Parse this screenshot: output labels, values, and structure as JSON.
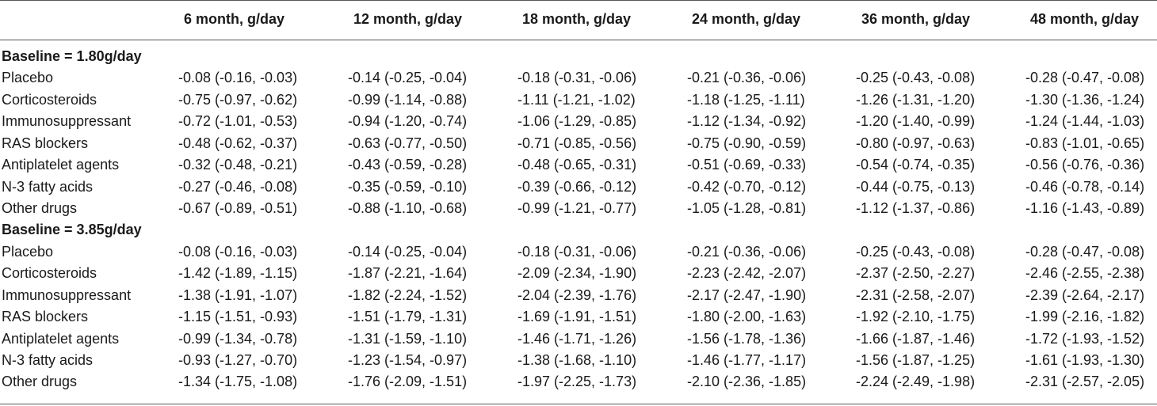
{
  "table": {
    "columns": [
      "6 month, g/day",
      "12 month, g/day",
      "18 month, g/day",
      "24 month, g/day",
      "36 month, g/day",
      "48 month, g/day"
    ],
    "sections": [
      {
        "title": "Baseline = 1.80g/day",
        "rows": [
          {
            "label": "Placebo",
            "cells": [
              "-0.08 (-0.16, -0.03)",
              "-0.14 (-0.25, -0.04)",
              "-0.18 (-0.31, -0.06)",
              "-0.21 (-0.36, -0.06)",
              "-0.25 (-0.43, -0.08)",
              "-0.28 (-0.47, -0.08)"
            ]
          },
          {
            "label": "Corticosteroids",
            "cells": [
              "-0.75 (-0.97, -0.62)",
              "-0.99 (-1.14, -0.88)",
              "-1.11 (-1.21, -1.02)",
              "-1.18 (-1.25, -1.11)",
              "-1.26 (-1.31, -1.20)",
              "-1.30 (-1.36, -1.24)"
            ]
          },
          {
            "label": "Immunosuppressant",
            "cells": [
              "-0.72 (-1.01, -0.53)",
              "-0.94 (-1.20, -0.74)",
              "-1.06 (-1.29, -0.85)",
              "-1.12 (-1.34, -0.92)",
              "-1.20 (-1.40, -0.99)",
              "-1.24 (-1.44, -1.03)"
            ]
          },
          {
            "label": "RAS blockers",
            "cells": [
              "-0.48 (-0.62, -0.37)",
              "-0.63 (-0.77, -0.50)",
              "-0.71 (-0.85, -0.56)",
              "-0.75 (-0.90, -0.59)",
              "-0.80 (-0.97, -0.63)",
              "-0.83 (-1.01, -0.65)"
            ]
          },
          {
            "label": "Antiplatelet agents",
            "cells": [
              "-0.32 (-0.48, -0.21)",
              "-0.43 (-0.59, -0.28)",
              "-0.48 (-0.65, -0.31)",
              "-0.51 (-0.69, -0.33)",
              "-0.54 (-0.74, -0.35)",
              "-0.56 (-0.76, -0.36)"
            ]
          },
          {
            "label": "N-3 fatty acids",
            "cells": [
              "-0.27 (-0.46, -0.08)",
              "-0.35 (-0.59, -0.10)",
              "-0.39 (-0.66, -0.12)",
              "-0.42 (-0.70, -0.12)",
              "-0.44 (-0.75, -0.13)",
              "-0.46 (-0.78, -0.14)"
            ]
          },
          {
            "label": "Other drugs",
            "cells": [
              "-0.67 (-0.89, -0.51)",
              "-0.88 (-1.10, -0.68)",
              "-0.99 (-1.21, -0.77)",
              "-1.05 (-1.28, -0.81)",
              "-1.12 (-1.37, -0.86)",
              "-1.16 (-1.43, -0.89)"
            ]
          }
        ]
      },
      {
        "title": "Baseline = 3.85g/day",
        "rows": [
          {
            "label": "Placebo",
            "cells": [
              "-0.08 (-0.16, -0.03)",
              "-0.14 (-0.25, -0.04)",
              "-0.18 (-0.31, -0.06)",
              "-0.21 (-0.36, -0.06)",
              "-0.25 (-0.43, -0.08)",
              "-0.28 (-0.47, -0.08)"
            ]
          },
          {
            "label": "Corticosteroids",
            "cells": [
              "-1.42 (-1.89, -1.15)",
              "-1.87 (-2.21, -1.64)",
              "-2.09 (-2.34, -1.90)",
              "-2.23 (-2.42, -2.07)",
              "-2.37 (-2.50, -2.27)",
              "-2.46 (-2.55, -2.38)"
            ]
          },
          {
            "label": "Immunosuppressant",
            "cells": [
              "-1.38 (-1.91, -1.07)",
              "-1.82 (-2.24, -1.52)",
              "-2.04 (-2.39, -1.76)",
              "-2.17 (-2.47, -1.90)",
              "-2.31 (-2.58, -2.07)",
              "-2.39 (-2.64, -2.17)"
            ]
          },
          {
            "label": "RAS blockers",
            "cells": [
              "-1.15 (-1.51, -0.93)",
              "-1.51 (-1.79, -1.31)",
              "-1.69 (-1.91, -1.51)",
              "-1.80 (-2.00, -1.63)",
              "-1.92 (-2.10, -1.75)",
              "-1.99 (-2.16, -1.82)"
            ]
          },
          {
            "label": "Antiplatelet agents",
            "cells": [
              "-0.99 (-1.34, -0.78)",
              "-1.31 (-1.59, -1.10)",
              "-1.46 (-1.71, -1.26)",
              "-1.56 (-1.78, -1.36)",
              "-1.66 (-1.87, -1.46)",
              "-1.72 (-1.93, -1.52)"
            ]
          },
          {
            "label": "N-3 fatty acids",
            "cells": [
              "-0.93 (-1.27, -0.70)",
              "-1.23 (-1.54, -0.97)",
              "-1.38 (-1.68, -1.10)",
              "-1.46 (-1.77, -1.17)",
              "-1.56 (-1.87, -1.25)",
              "-1.61 (-1.93, -1.30)"
            ]
          },
          {
            "label": "Other drugs",
            "cells": [
              "-1.34 (-1.75, -1.08)",
              "-1.76 (-2.09, -1.51)",
              "-1.97 (-2.25, -1.73)",
              "-2.10 (-2.36, -1.85)",
              "-2.24 (-2.49, -1.98)",
              "-2.31 (-2.57, -2.05)"
            ]
          }
        ]
      }
    ]
  }
}
